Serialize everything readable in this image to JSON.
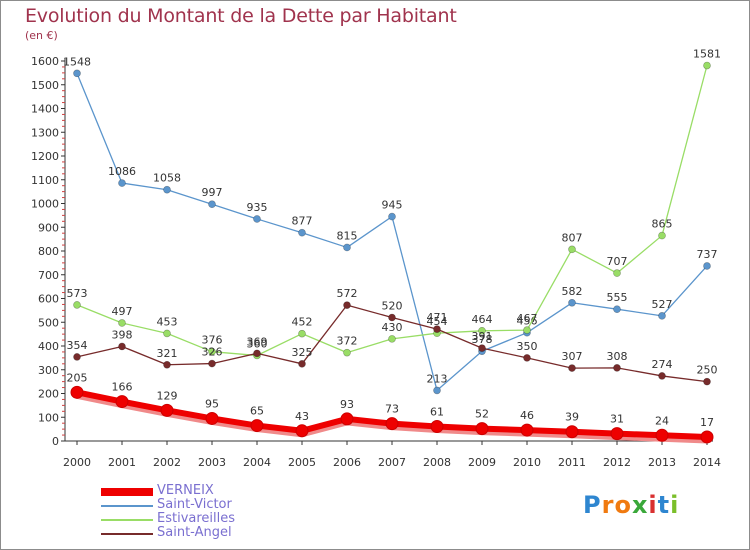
{
  "title": "Evolution du Montant de la Dette par Habitant",
  "subtitle": "(en €)",
  "chart_data": {
    "type": "line",
    "title": "Evolution du Montant de la Dette par Habitant",
    "ylabel": "(en €)",
    "xlabel": "",
    "ylim": [
      0,
      1600
    ],
    "yticks": [
      0,
      100,
      200,
      300,
      400,
      500,
      600,
      700,
      800,
      900,
      1000,
      1100,
      1200,
      1300,
      1400,
      1500,
      1600
    ],
    "grid": false,
    "legend_position": "bottom-left",
    "categories": [
      "2000",
      "2001",
      "2002",
      "2003",
      "2004",
      "2005",
      "2006",
      "2007",
      "2008",
      "2009",
      "2010",
      "2011",
      "2012",
      "2013",
      "2014"
    ],
    "series": [
      {
        "name": "VERNEIX",
        "color": "#ee0000",
        "values": [
          205,
          166,
          129,
          95,
          65,
          43,
          93,
          73,
          61,
          52,
          46,
          39,
          31,
          24,
          17
        ]
      },
      {
        "name": "Saint-Victor",
        "color": "#5b95cc",
        "values": [
          1548,
          1086,
          1058,
          997,
          935,
          877,
          815,
          945,
          213,
          378,
          456,
          582,
          555,
          527,
          737
        ]
      },
      {
        "name": "Estivareilles",
        "color": "#99dd66",
        "values": [
          573,
          497,
          453,
          376,
          360,
          452,
          372,
          430,
          454,
          464,
          467,
          807,
          707,
          865,
          1581
        ]
      },
      {
        "name": "Saint-Angel",
        "color": "#772b2b",
        "values": [
          354,
          398,
          321,
          326,
          369,
          325,
          572,
          520,
          471,
          391,
          350,
          307,
          308,
          274,
          250
        ]
      }
    ]
  },
  "logo": {
    "text": "Proxiti",
    "letters": [
      "P",
      "r",
      "o",
      "x",
      "i",
      "t",
      "i"
    ],
    "colors": [
      "#2e86d0",
      "#f07a10",
      "#f07a10",
      "#3aa83a",
      "#d93030",
      "#2e86d0",
      "#7bbf2a"
    ]
  }
}
